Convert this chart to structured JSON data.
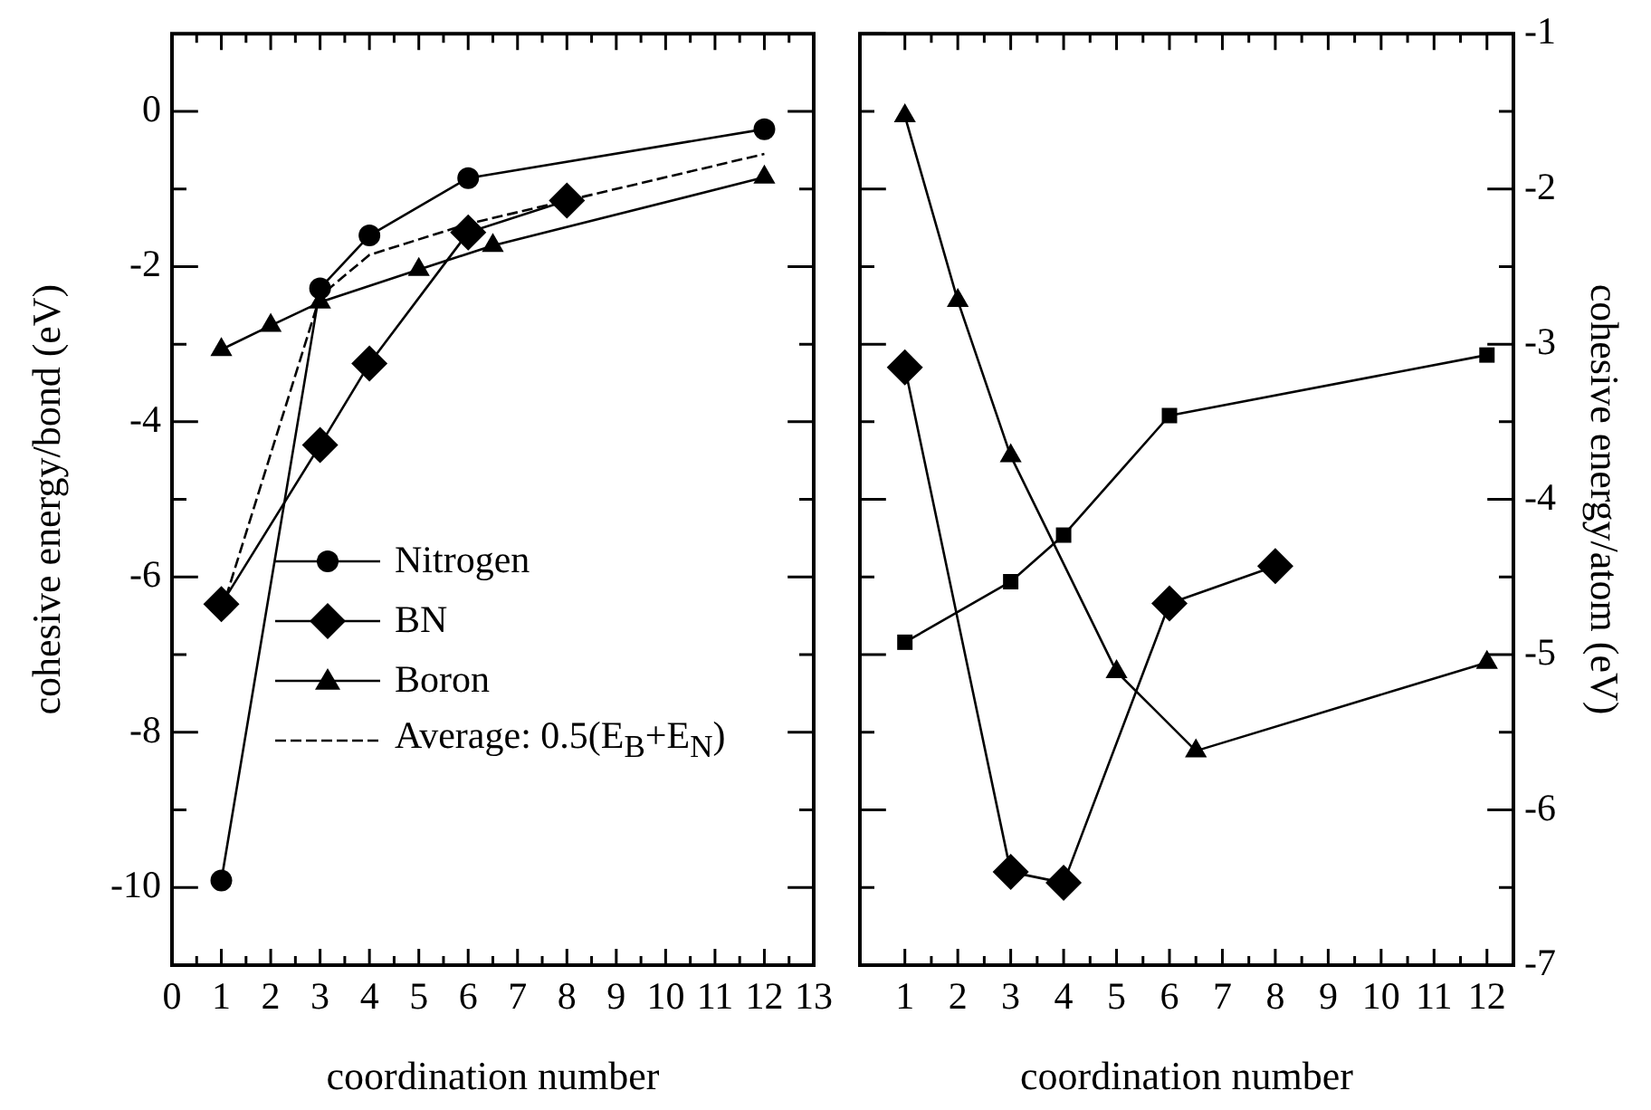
{
  "chart_data": [
    {
      "type": "line",
      "xlabel": "coordination number",
      "ylabel": "cohesive energy/bond (eV)",
      "xlim": [
        0,
        13
      ],
      "xticks": [
        0,
        1,
        2,
        3,
        4,
        5,
        6,
        7,
        8,
        9,
        10,
        11,
        12,
        13
      ],
      "ylim": [
        -11,
        1
      ],
      "yticks": [
        -10,
        -8,
        -6,
        -4,
        -2,
        0
      ],
      "grid": false,
      "legend": "bottom left",
      "series": [
        {
          "name": "Nitrogen",
          "color": "#000000",
          "marker": "circle",
          "line_style": "solid",
          "x": [
            1,
            3,
            4,
            6,
            12
          ],
          "values": [
            -9.91,
            -2.28,
            -1.6,
            -0.86,
            -0.23
          ]
        },
        {
          "name": "BN",
          "color": "#000000",
          "marker": "diamond",
          "line_style": "solid",
          "x": [
            1,
            3,
            4,
            6,
            8
          ],
          "values": [
            -6.35,
            -4.3,
            -3.25,
            -1.56,
            -1.15
          ]
        },
        {
          "name": "Boron",
          "color": "#000000",
          "marker": "triangle",
          "line_style": "solid",
          "x": [
            1,
            2,
            3,
            5,
            6.5,
            12
          ],
          "values": [
            -3.07,
            -2.76,
            -2.46,
            -2.04,
            -1.73,
            -0.85
          ]
        },
        {
          "name": "Average: 0.5(E$_{B}$+E$_{N}$)",
          "color": "#000000",
          "marker": "none",
          "line_style": "dashed",
          "x": [
            1,
            3,
            4,
            6,
            8,
            12
          ],
          "values": [
            -6.45,
            -2.38,
            -1.85,
            -1.45,
            -1.15,
            -0.55
          ]
        }
      ]
    },
    {
      "type": "line",
      "xlabel": "coordination number",
      "y2label": "cohesive energy/atom (eV)",
      "xlim": [
        0.15,
        12.5
      ],
      "xticks": [
        1,
        2,
        3,
        4,
        5,
        6,
        7,
        8,
        9,
        10,
        11,
        12
      ],
      "y2lim": [
        -7,
        -1
      ],
      "y2ticks": [
        -7,
        -6,
        -5,
        -4,
        -3,
        -2,
        -1
      ],
      "grid": false,
      "series": [
        {
          "color": "#000000",
          "marker": "square",
          "line_style": "solid",
          "axis": "y2",
          "x": [
            1,
            3,
            4,
            6,
            12
          ],
          "values": [
            -4.92,
            -4.53,
            -4.23,
            -3.46,
            -3.07
          ]
        },
        {
          "color": "#000000",
          "marker": "diamond",
          "line_style": "solid",
          "axis": "y2",
          "x": [
            1,
            3,
            4,
            6,
            8
          ],
          "values": [
            -3.15,
            -6.4,
            -6.47,
            -4.67,
            -4.43
          ]
        },
        {
          "color": "#000000",
          "marker": "triangle",
          "line_style": "solid",
          "axis": "y2",
          "x": [
            1,
            2,
            3,
            5,
            6.5,
            12
          ],
          "values": [
            -1.53,
            -2.72,
            -3.72,
            -5.11,
            -5.62,
            -5.05
          ]
        }
      ]
    }
  ]
}
